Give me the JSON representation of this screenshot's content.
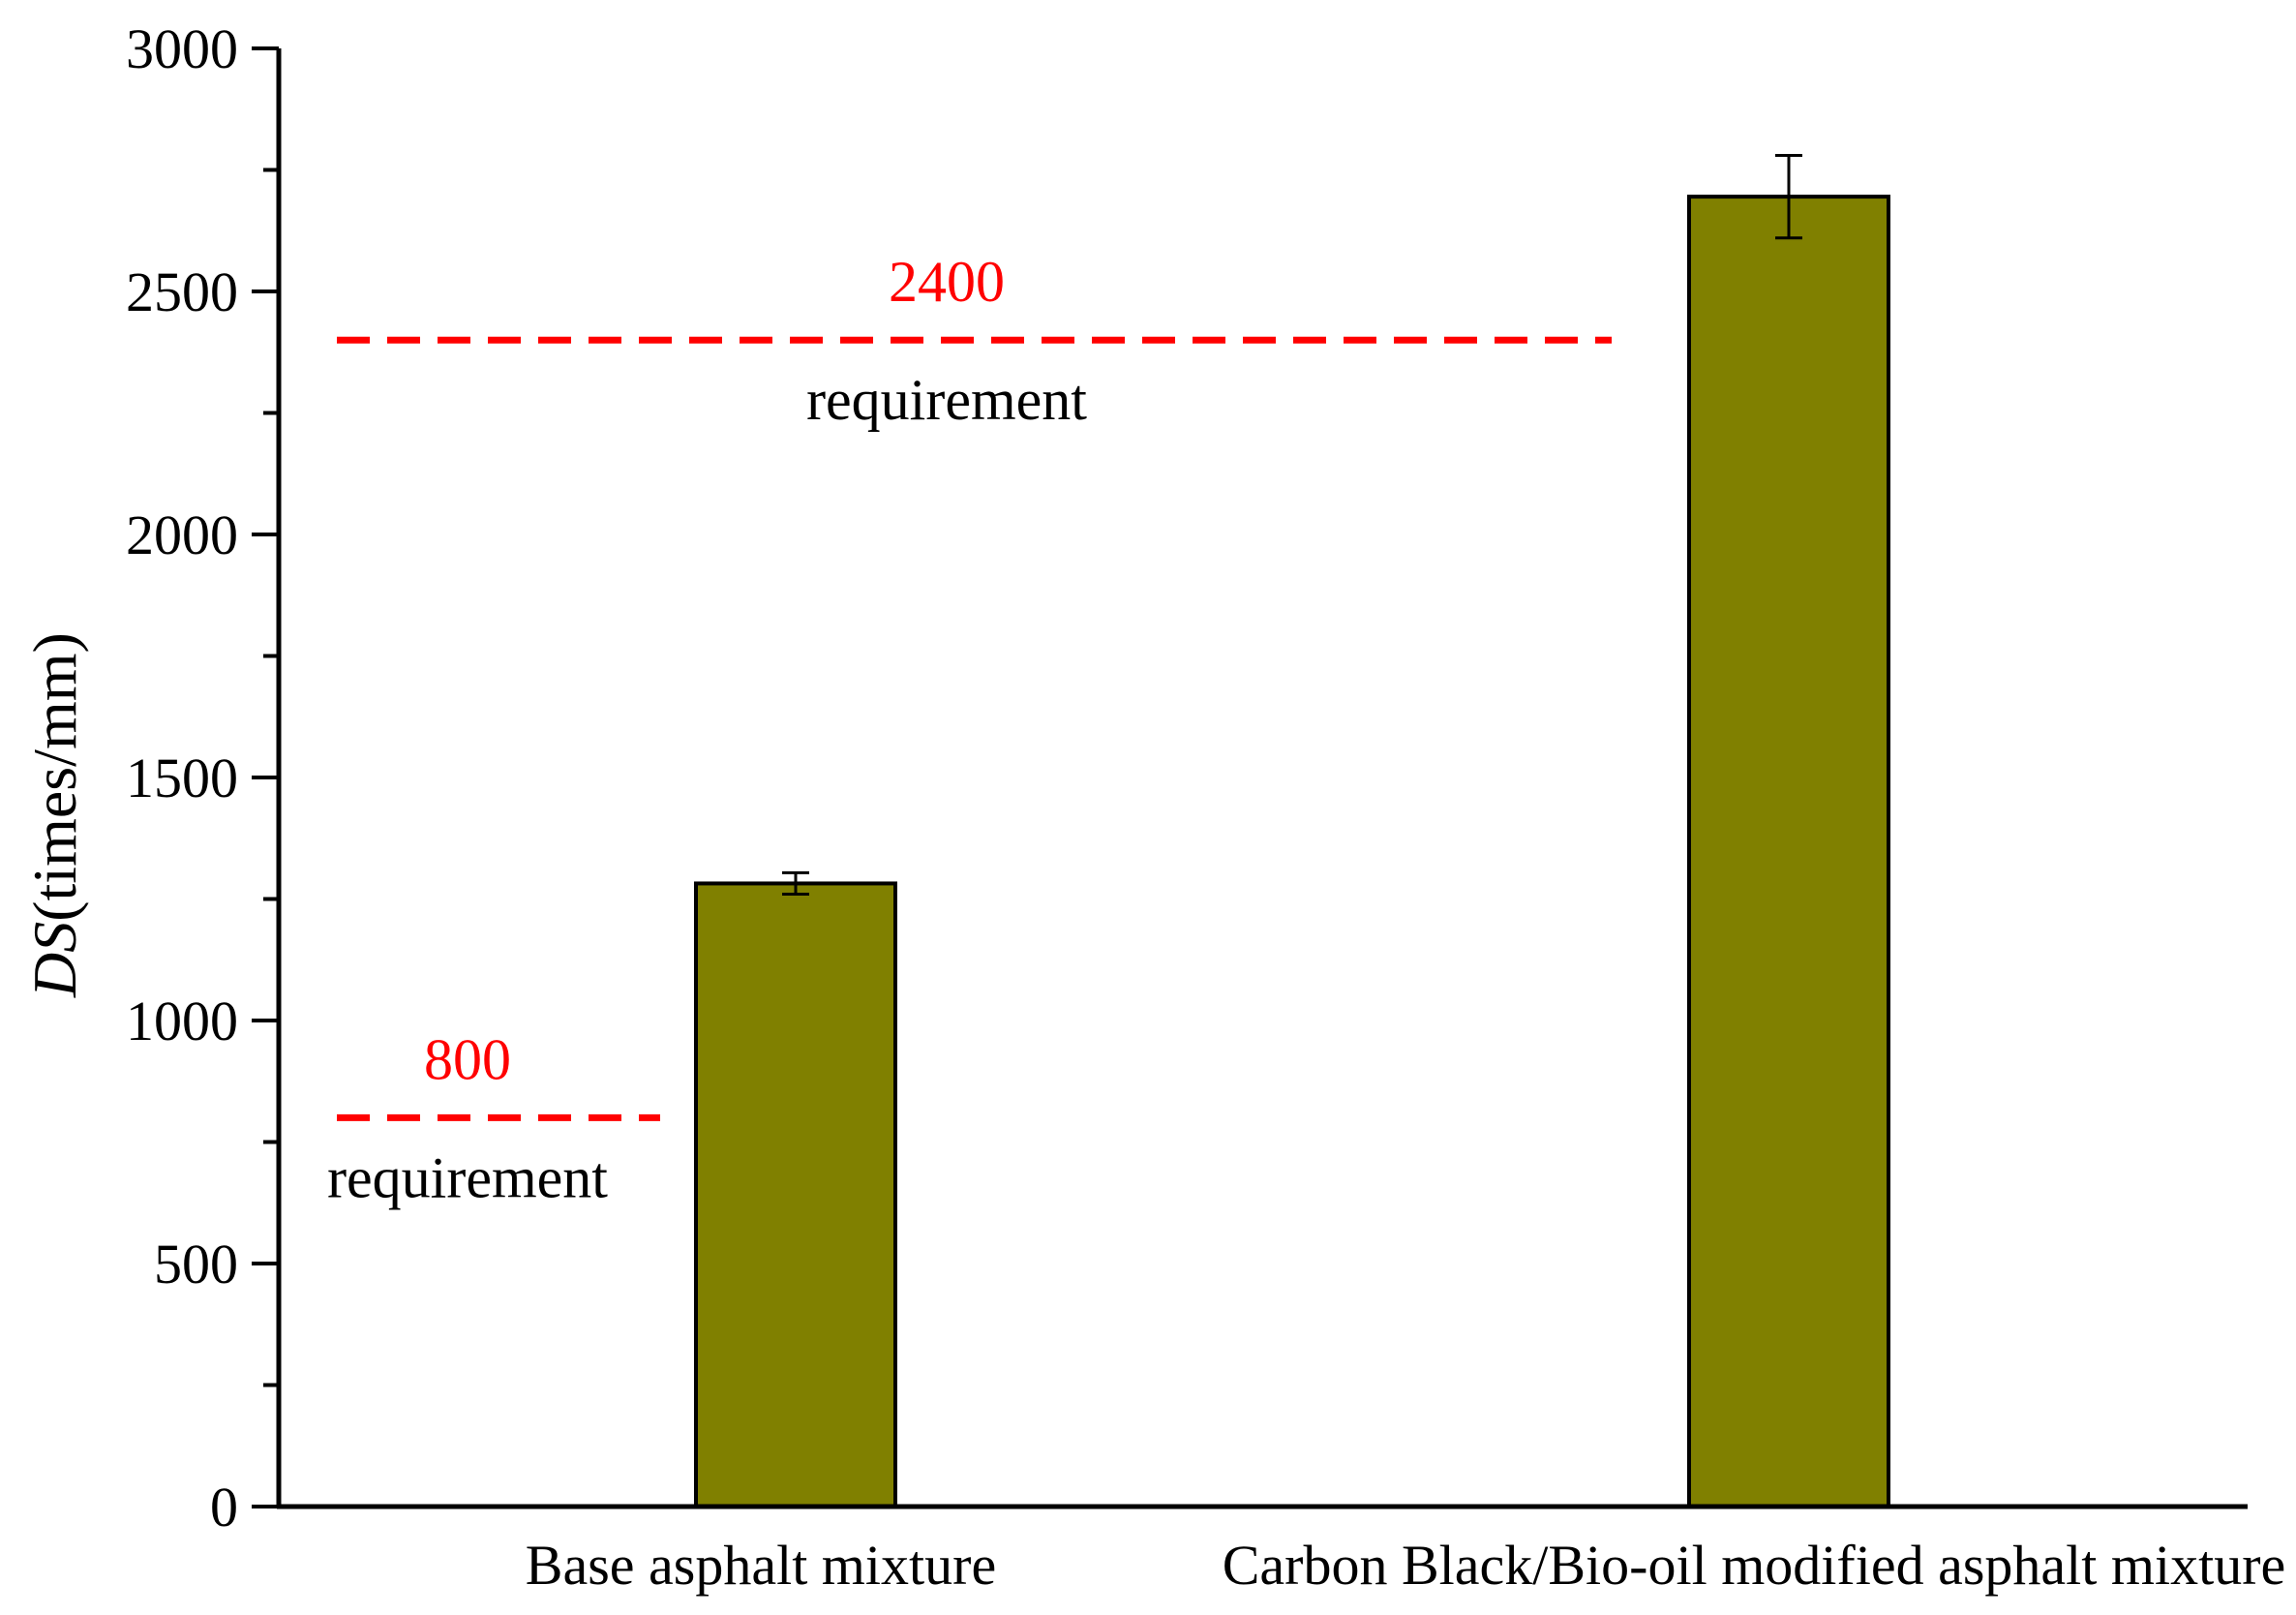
{
  "chart_data": {
    "type": "bar",
    "categories": [
      "Base asphalt mixture",
      "Carbon Black/Bio-oil modified asphalt mixture"
    ],
    "values": [
      1282,
      2695
    ],
    "errors": [
      22,
      85
    ],
    "ylabel_italic": "DS",
    "ylabel_rest": "(times/mm)",
    "xlabel": "",
    "ylim": [
      0,
      3000
    ],
    "yticks": [
      0,
      500,
      1000,
      1500,
      2000,
      2500,
      3000
    ],
    "grid": false,
    "bar_color": "#808000",
    "reference_lines": [
      {
        "value": 2400,
        "value_label": "2400",
        "label": "requirement",
        "color": "#ff0000"
      },
      {
        "value": 800,
        "value_label": "800",
        "label": "requirement",
        "color": "#ff0000"
      }
    ]
  }
}
